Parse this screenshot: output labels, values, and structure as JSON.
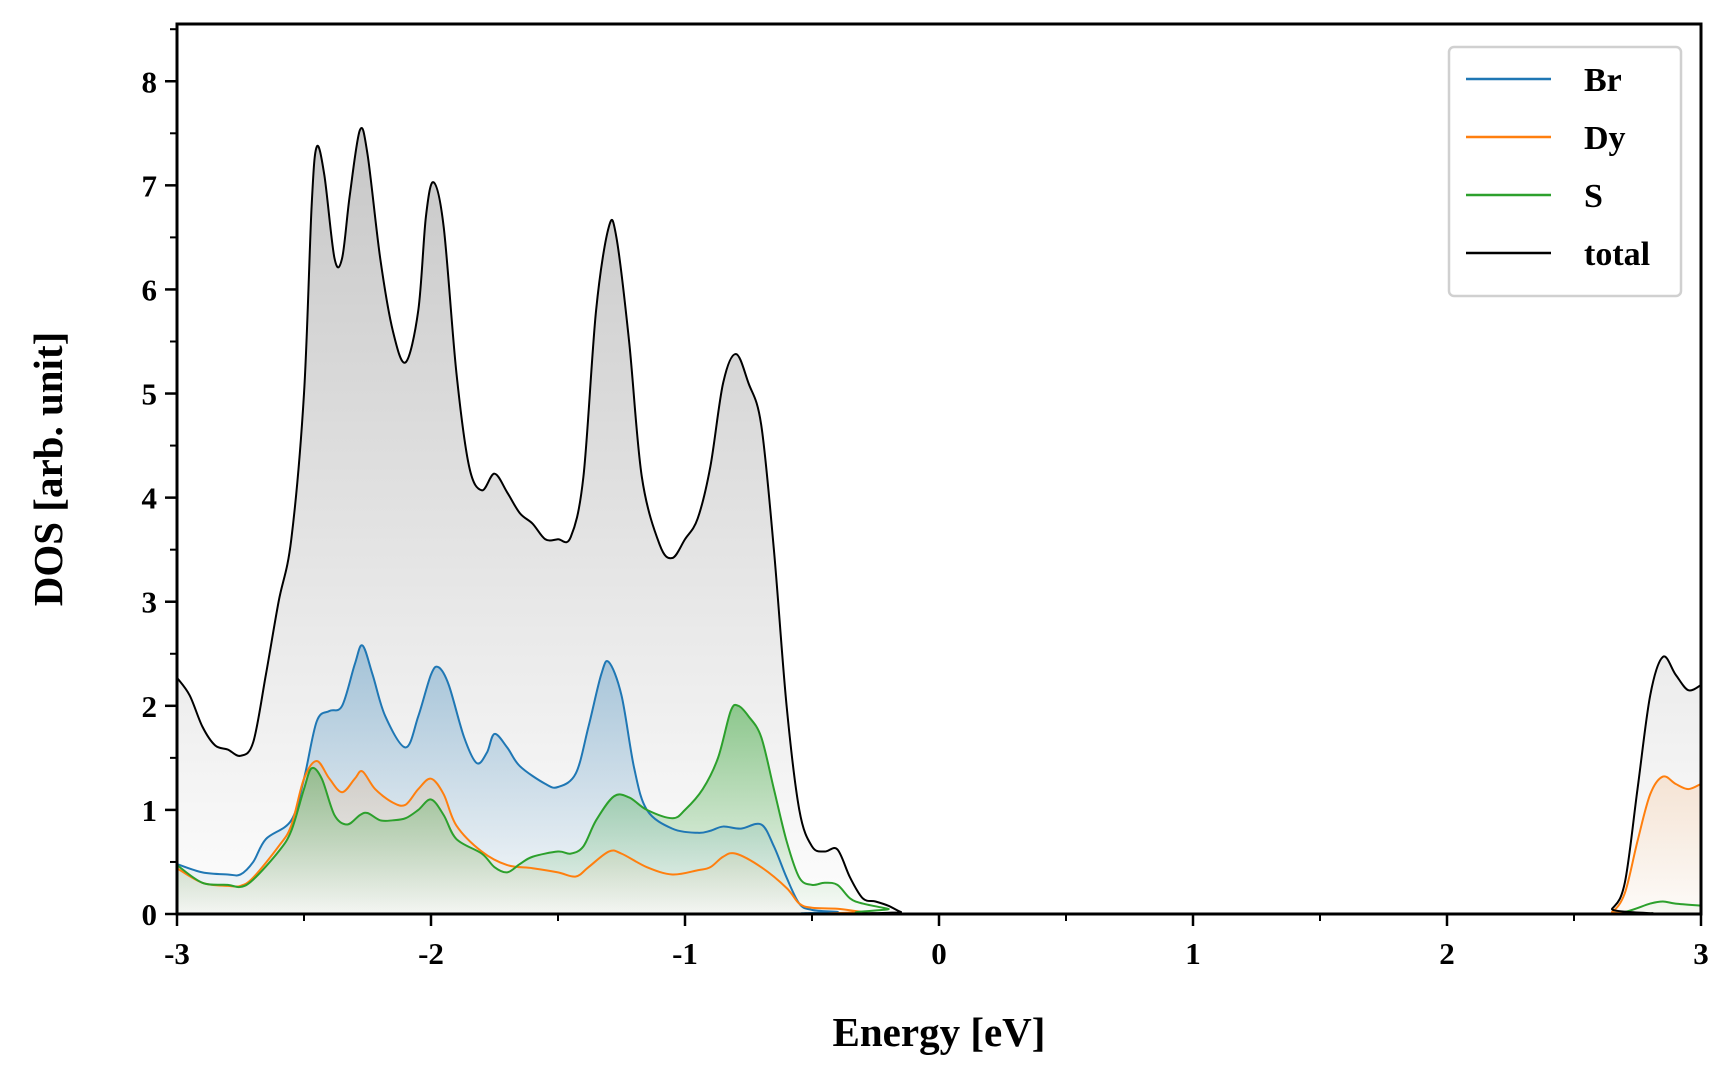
{
  "chart_data": {
    "type": "line",
    "title": "",
    "xlabel": "Energy [eV]",
    "ylabel": "DOS [arb. unit]",
    "xlim": [
      -3,
      3
    ],
    "ylim": [
      0,
      8.55
    ],
    "xticks": [
      -3,
      -2,
      -1,
      0,
      1,
      2,
      3
    ],
    "xtick_labels": [
      "-3",
      "-2",
      "-1",
      "0",
      "1",
      "2",
      "3"
    ],
    "yticks": [
      0,
      1,
      2,
      3,
      4,
      5,
      6,
      7,
      8
    ],
    "ytick_labels": [
      "0",
      "1",
      "2",
      "3",
      "4",
      "5",
      "6",
      "7",
      "8"
    ],
    "grid": false,
    "legend_position": "top-right",
    "series": [
      {
        "name": "Br",
        "color": "#1f77b4",
        "fill": "#1f77b4",
        "x": [
          -3,
          -2.9,
          -2.8,
          -2.75,
          -2.7,
          -2.65,
          -2.55,
          -2.5,
          -2.45,
          -2.4,
          -2.35,
          -2.3,
          -2.27,
          -2.23,
          -2.18,
          -2.1,
          -2.05,
          -2.0,
          -1.97,
          -1.93,
          -1.87,
          -1.82,
          -1.78,
          -1.75,
          -1.7,
          -1.65,
          -1.55,
          -1.5,
          -1.43,
          -1.38,
          -1.33,
          -1.3,
          -1.25,
          -1.2,
          -1.15,
          -1.05,
          -0.95,
          -0.9,
          -0.85,
          -0.78,
          -0.7,
          -0.65,
          -0.6,
          -0.55,
          -0.5,
          -0.4,
          -0.3,
          2.6,
          3.0
        ],
        "y": [
          0.48,
          0.4,
          0.38,
          0.38,
          0.5,
          0.72,
          0.9,
          1.3,
          1.85,
          1.95,
          2.0,
          2.4,
          2.58,
          2.3,
          1.9,
          1.6,
          1.9,
          2.3,
          2.37,
          2.2,
          1.7,
          1.45,
          1.55,
          1.73,
          1.6,
          1.42,
          1.25,
          1.22,
          1.35,
          1.8,
          2.3,
          2.42,
          2.1,
          1.4,
          1.0,
          0.82,
          0.78,
          0.8,
          0.84,
          0.82,
          0.86,
          0.65,
          0.35,
          0.1,
          0.04,
          0.02,
          0,
          0,
          0
        ]
      },
      {
        "name": "Dy",
        "color": "#ff7f0e",
        "fill": "#ff7f0e",
        "x": [
          -3,
          -2.9,
          -2.8,
          -2.75,
          -2.7,
          -2.6,
          -2.55,
          -2.5,
          -2.45,
          -2.4,
          -2.35,
          -2.3,
          -2.27,
          -2.22,
          -2.15,
          -2.1,
          -2.05,
          -2.0,
          -1.95,
          -1.9,
          -1.8,
          -1.7,
          -1.6,
          -1.5,
          -1.43,
          -1.38,
          -1.3,
          -1.25,
          -1.15,
          -1.05,
          -0.95,
          -0.9,
          -0.85,
          -0.8,
          -0.7,
          -0.6,
          -0.55,
          -0.5,
          -0.4,
          -0.3,
          -0.2,
          2.6,
          2.65,
          2.7,
          2.75,
          2.8,
          2.85,
          2.9,
          2.95,
          3.0
        ],
        "y": [
          0.44,
          0.3,
          0.27,
          0.27,
          0.35,
          0.65,
          0.85,
          1.3,
          1.47,
          1.3,
          1.17,
          1.3,
          1.37,
          1.2,
          1.07,
          1.05,
          1.2,
          1.3,
          1.15,
          0.85,
          0.6,
          0.47,
          0.44,
          0.4,
          0.36,
          0.45,
          0.6,
          0.58,
          0.45,
          0.38,
          0.42,
          0.45,
          0.55,
          0.58,
          0.45,
          0.25,
          0.1,
          0.06,
          0.05,
          0.02,
          0,
          0,
          0.02,
          0.2,
          0.7,
          1.15,
          1.32,
          1.25,
          1.2,
          1.25
        ]
      },
      {
        "name": "S",
        "color": "#2ca02c",
        "fill": "#2ca02c",
        "x": [
          -3,
          -2.9,
          -2.8,
          -2.75,
          -2.7,
          -2.6,
          -2.55,
          -2.5,
          -2.47,
          -2.43,
          -2.38,
          -2.33,
          -2.28,
          -2.25,
          -2.2,
          -2.15,
          -2.1,
          -2.05,
          -2.0,
          -1.95,
          -1.9,
          -1.8,
          -1.75,
          -1.7,
          -1.65,
          -1.6,
          -1.5,
          -1.45,
          -1.4,
          -1.35,
          -1.28,
          -1.22,
          -1.15,
          -1.05,
          -1.0,
          -0.93,
          -0.87,
          -0.82,
          -0.79,
          -0.75,
          -0.7,
          -0.65,
          -0.6,
          -0.55,
          -0.5,
          -0.45,
          -0.4,
          -0.35,
          -0.3,
          -0.2,
          -0.1,
          2.6,
          2.7,
          2.8,
          2.85,
          2.9,
          3.0
        ],
        "y": [
          0.47,
          0.3,
          0.28,
          0.26,
          0.33,
          0.6,
          0.8,
          1.2,
          1.4,
          1.3,
          0.95,
          0.86,
          0.95,
          0.97,
          0.9,
          0.9,
          0.92,
          1.0,
          1.1,
          0.95,
          0.72,
          0.58,
          0.45,
          0.4,
          0.48,
          0.55,
          0.6,
          0.58,
          0.65,
          0.9,
          1.13,
          1.12,
          1.0,
          0.92,
          1.0,
          1.2,
          1.5,
          1.95,
          2.0,
          1.9,
          1.7,
          1.2,
          0.7,
          0.35,
          0.28,
          0.3,
          0.28,
          0.15,
          0.1,
          0.05,
          0,
          0,
          0.02,
          0.1,
          0.12,
          0.1,
          0.08
        ]
      },
      {
        "name": "total",
        "color": "#000000",
        "fill": "#9a9a9a",
        "x": [
          -3,
          -2.95,
          -2.9,
          -2.85,
          -2.8,
          -2.75,
          -2.7,
          -2.65,
          -2.6,
          -2.55,
          -2.5,
          -2.47,
          -2.45,
          -2.42,
          -2.38,
          -2.35,
          -2.32,
          -2.28,
          -2.25,
          -2.2,
          -2.15,
          -2.1,
          -2.05,
          -2.02,
          -1.99,
          -1.95,
          -1.9,
          -1.85,
          -1.8,
          -1.75,
          -1.7,
          -1.65,
          -1.6,
          -1.55,
          -1.5,
          -1.45,
          -1.4,
          -1.35,
          -1.3,
          -1.27,
          -1.22,
          -1.17,
          -1.1,
          -1.05,
          -1.0,
          -0.95,
          -0.9,
          -0.85,
          -0.8,
          -0.75,
          -0.7,
          -0.65,
          -0.6,
          -0.55,
          -0.5,
          -0.45,
          -0.4,
          -0.35,
          -0.3,
          -0.25,
          -0.2,
          -0.15,
          -0.1,
          2.6,
          2.65,
          2.7,
          2.75,
          2.8,
          2.85,
          2.9,
          2.95,
          3.0
        ],
        "y": [
          2.27,
          2.1,
          1.8,
          1.62,
          1.58,
          1.52,
          1.65,
          2.3,
          3.0,
          3.6,
          5.0,
          6.8,
          7.37,
          7.1,
          6.3,
          6.3,
          6.9,
          7.53,
          7.3,
          6.3,
          5.6,
          5.3,
          5.8,
          6.7,
          7.03,
          6.6,
          5.2,
          4.3,
          4.07,
          4.23,
          4.05,
          3.85,
          3.75,
          3.6,
          3.6,
          3.62,
          4.2,
          5.8,
          6.6,
          6.5,
          5.5,
          4.2,
          3.55,
          3.42,
          3.6,
          3.8,
          4.3,
          5.1,
          5.38,
          5.1,
          4.7,
          3.5,
          2.0,
          1.0,
          0.65,
          0.6,
          0.62,
          0.35,
          0.15,
          0.12,
          0.08,
          0.02,
          0,
          0,
          0.05,
          0.3,
          1.2,
          2.1,
          2.47,
          2.3,
          2.15,
          2.2
        ]
      }
    ]
  }
}
